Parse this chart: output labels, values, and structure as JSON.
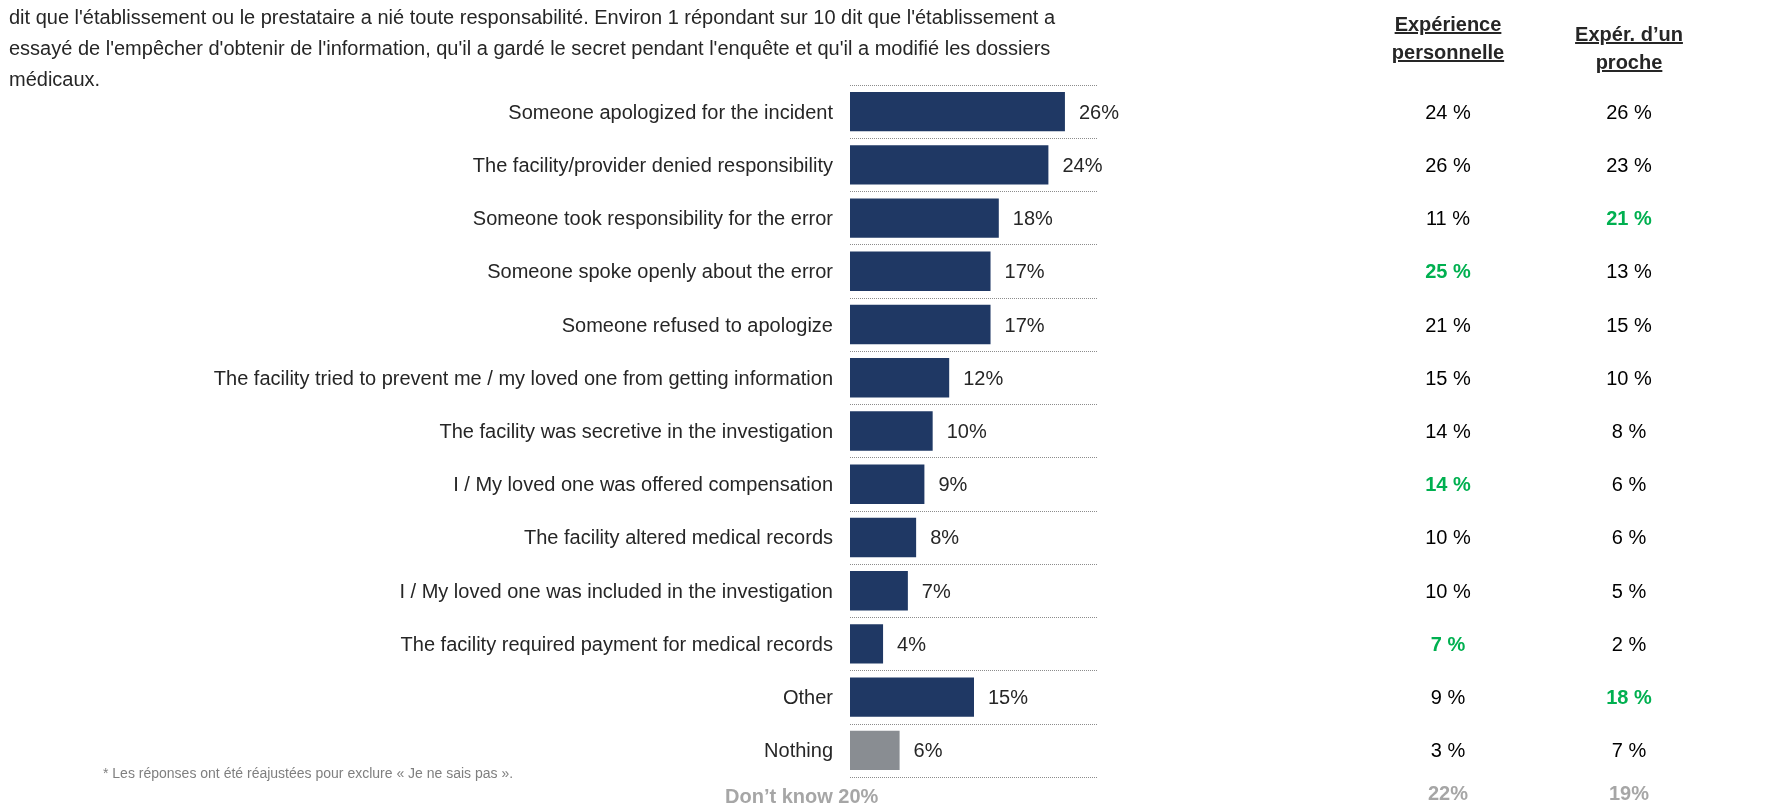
{
  "chart_data": [
    {
      "type": "bar",
      "orientation": "horizontal",
      "subtitle": "dit que l'établissement ou le prestataire a nié toute responsabilité. Environ 1 répondant sur 10 dit que l'établissement a essayé de l'empêcher d'obtenir de l'information, qu'il a gardé le secret pendant l'enquête et qu'il a modifié les dossiers médicaux.",
      "categories": [
        "Someone apologized for the incident",
        "The facility/provider denied responsibility",
        "Someone took responsibility for the error",
        "Someone spoke openly about the error",
        "Someone refused to apologize",
        "The facility tried to prevent me / my loved one from getting information",
        "The facility was secretive in the investigation",
        "I / My loved one was offered compensation",
        "The facility altered medical records",
        "I / My loved one was included in the investigation",
        "The facility required payment for medical records",
        "Other",
        "Nothing"
      ],
      "values": [
        26,
        24,
        18,
        17,
        17,
        12,
        10,
        9,
        8,
        7,
        4,
        15,
        6
      ],
      "value_labels": [
        "26%",
        "24%",
        "18%",
        "17%",
        "17%",
        "12%",
        "10%",
        "9%",
        "8%",
        "7%",
        "4%",
        "15%",
        "6%"
      ],
      "colors": [
        "#1f3864",
        "#1f3864",
        "#1f3864",
        "#1f3864",
        "#1f3864",
        "#1f3864",
        "#1f3864",
        "#1f3864",
        "#1f3864",
        "#1f3864",
        "#1f3864",
        "#1f3864",
        "#898d92"
      ],
      "grid": "y",
      "annotations": [
        "* Les réponses ont été réajustées pour exclure « Je ne sais pas ».",
        "Don’t know 20%"
      ]
    },
    {
      "type": "other",
      "categories": [
        "Expérience personnelle",
        "Expér. d’un proche"
      ],
      "cell_labels": [
        [
          "24 %",
          "26 %"
        ],
        [
          "26 %",
          "23 %"
        ],
        [
          "11 %",
          "21 %"
        ],
        [
          "25 %",
          "13 %"
        ],
        [
          "21 %",
          "15 %"
        ],
        [
          "15 %",
          "10 %"
        ],
        [
          "14 %",
          "8 %"
        ],
        [
          "14 %",
          "6 %"
        ],
        [
          "10 %",
          "6 %"
        ],
        [
          "10 %",
          "5 %"
        ],
        [
          "7 %",
          "2 %"
        ],
        [
          "9 %",
          "18 %"
        ],
        [
          "3 %",
          "7 %"
        ],
        [
          "22%",
          "19%"
        ]
      ],
      "colors": [
        [
          "#000000",
          "#000000"
        ],
        [
          "#000000",
          "#000000"
        ],
        [
          "#000000",
          "#00b050"
        ],
        [
          "#00b050",
          "#000000"
        ],
        [
          "#000000",
          "#000000"
        ],
        [
          "#000000",
          "#000000"
        ],
        [
          "#000000",
          "#000000"
        ],
        [
          "#00b050",
          "#000000"
        ],
        [
          "#000000",
          "#000000"
        ],
        [
          "#000000",
          "#000000"
        ],
        [
          "#00b050",
          "#000000"
        ],
        [
          "#000000",
          "#00b050"
        ],
        [
          "#000000",
          "#000000"
        ],
        [
          "#a6a6a6",
          "#a6a6a6"
        ]
      ]
    }
  ]
}
